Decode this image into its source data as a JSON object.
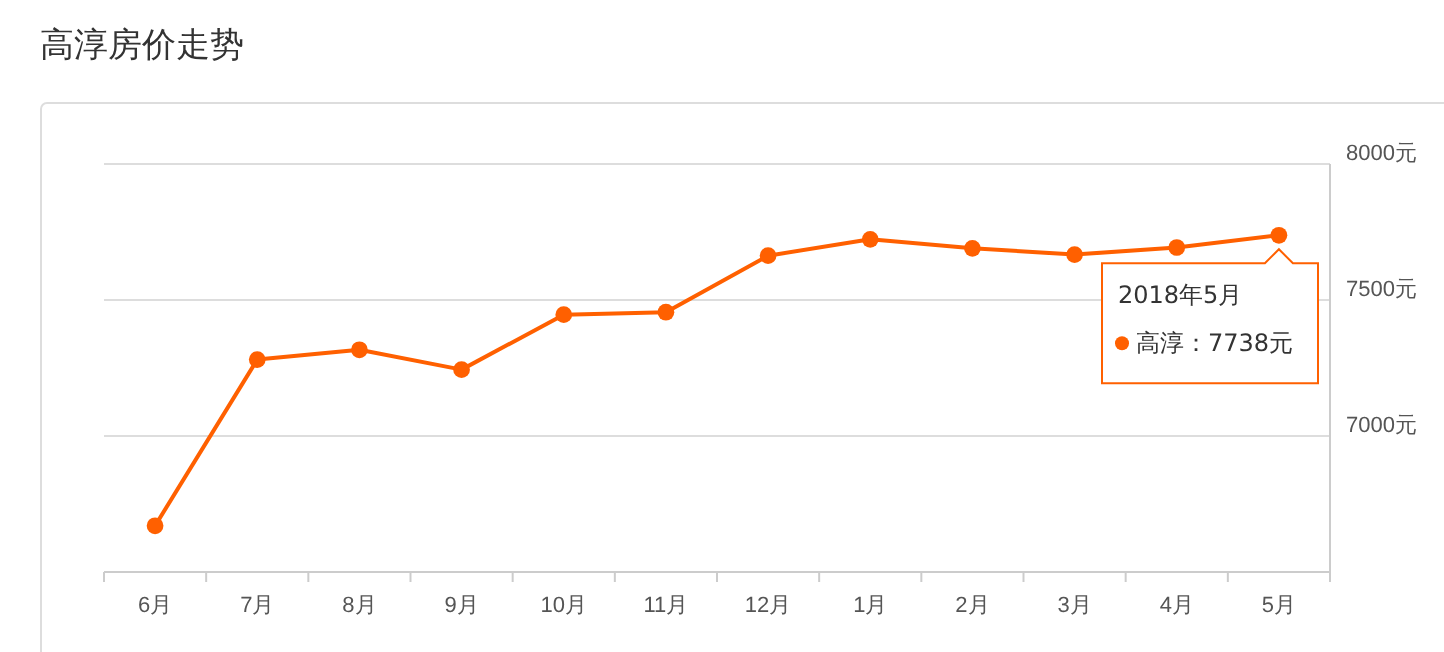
{
  "chart_data": {
    "type": "line",
    "title": "高淳房价走势",
    "categories": [
      "6月",
      "7月",
      "8月",
      "9月",
      "10月",
      "11月",
      "12月",
      "1月",
      "2月",
      "3月",
      "4月",
      "5月"
    ],
    "series": [
      {
        "color": "#ff6000",
        "values": [
          6670,
          7281,
          7317,
          7244,
          7446,
          7455,
          7663,
          7723,
          7690,
          7667,
          7693,
          7738
        ]
      }
    ],
    "ylim": [
      6500,
      8000
    ],
    "yticks": [
      {
        "value": 7000,
        "label": "7000元"
      },
      {
        "value": 7500,
        "label": "7500元"
      },
      {
        "value": 8000,
        "label": "8000元"
      }
    ],
    "grid": "y",
    "marker": "circle",
    "line_style": "solid",
    "annotations": [
      {
        "text": "2018年5月",
        "x": "5月",
        "y": 7738
      },
      "高淳：7738元"
    ]
  }
}
